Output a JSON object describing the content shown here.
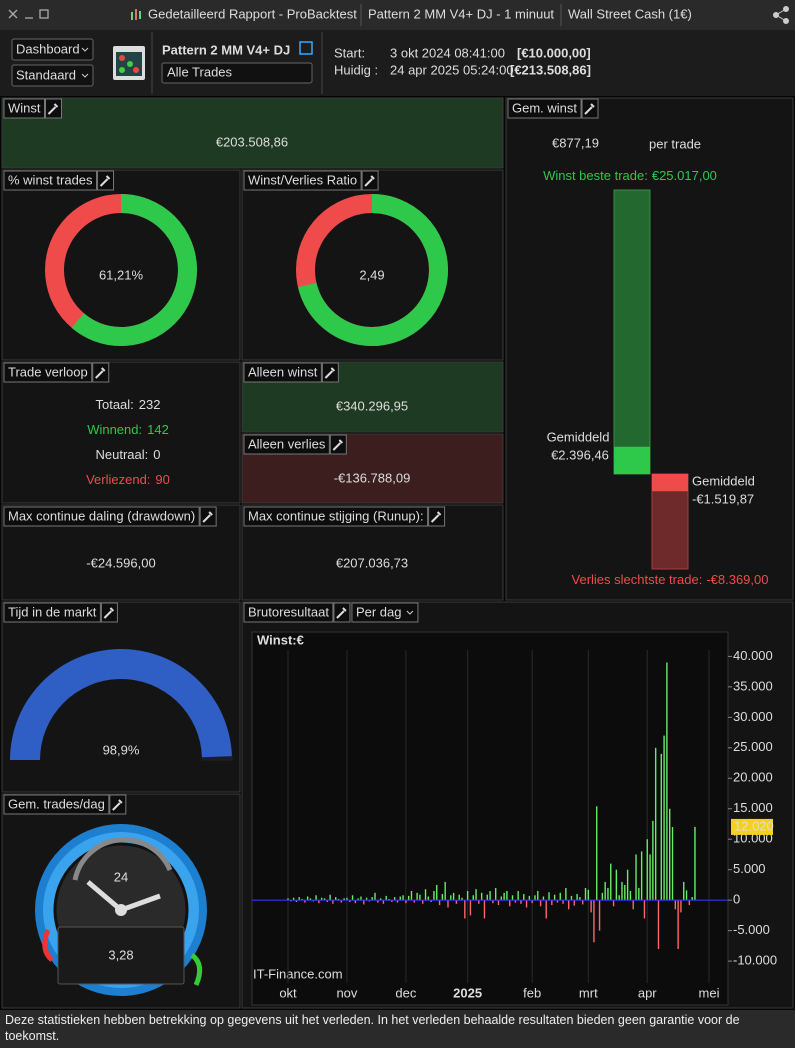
{
  "titlebar": {
    "tabs": [
      "Gedetailleerd Rapport - ProBacktest",
      "Pattern 2 MM V4+ DJ - 1 minuut",
      "Wall Street Cash (1€)"
    ]
  },
  "toolbar": {
    "view": "Dashboard",
    "layout": "Standaard",
    "system": "Pattern 2 MM V4+ DJ",
    "filter": "Alle Trades",
    "start_label": "Start:",
    "start_date": "3 okt 2024 08:41:00",
    "start_capital": "[€10.000,00]",
    "current_label": "Huidig :",
    "current_date": "24 apr 2025 05:24:00",
    "current_capital": "[€213.508,86]"
  },
  "winst": {
    "title": "Winst",
    "value": "€203.508,86"
  },
  "win_pct": {
    "title": "% winst trades",
    "value": 61.21,
    "value_label": "61,21%"
  },
  "ratio": {
    "title": "Winst/Verlies Ratio",
    "value": 2.49,
    "value_label": "2,49"
  },
  "trade_verloop": {
    "title": "Trade verloop",
    "rows": [
      {
        "label": "Totaal:",
        "value": 232
      },
      {
        "label": "Winnend:",
        "value": 142
      },
      {
        "label": "Neutraal:",
        "value": 0
      },
      {
        "label": "Verliezend:",
        "value": 90
      }
    ]
  },
  "alleen_winst": {
    "title": "Alleen winst",
    "value": "€340.296,95"
  },
  "alleen_verlies": {
    "title": "Alleen verlies",
    "value": "-€136.788,09"
  },
  "drawdown": {
    "title": "Max continue daling (drawdown)",
    "value": "-€24.596,00"
  },
  "runup": {
    "title": "Max continue stijging (Runup):",
    "value": "€207.036,73"
  },
  "gem_winst": {
    "title": "Gem. winst",
    "value": "€877,19",
    "unit": "per trade",
    "best": {
      "label": "Winst beste trade:",
      "value": 25017,
      "value_label": "€25.017,00"
    },
    "avg_win": {
      "label": "Gemiddeld",
      "value": 2396.46,
      "value_label": "€2.396,46"
    },
    "avg_loss": {
      "label": "Gemiddeld",
      "value": -1519.87,
      "value_label": "-€1.519,87"
    },
    "worst": {
      "label": "Verlies slechtste trade:",
      "value": -8369,
      "value_label": "-€8.369,00"
    }
  },
  "time_in_market": {
    "title": "Tijd in de markt",
    "value": 98.9,
    "value_label": "98,9%"
  },
  "trades_per_day": {
    "title": "Gem. trades/dag",
    "clock_label": "24",
    "value": "3,28"
  },
  "chart_data": {
    "type": "bar",
    "title": "Brutoresultaat",
    "period": "Per dag",
    "legend": "Winst:€",
    "watermark": "IT-Finance.com",
    "categories": [
      "okt",
      null,
      null,
      null,
      null,
      null,
      null,
      null,
      null,
      null,
      null,
      null,
      null,
      null,
      null,
      null,
      null,
      null,
      null,
      null,
      null,
      "nov",
      null,
      null,
      null,
      null,
      null,
      null,
      null,
      null,
      null,
      null,
      null,
      null,
      null,
      null,
      null,
      null,
      null,
      null,
      null,
      null,
      "dec",
      null,
      null,
      null,
      null,
      null,
      null,
      null,
      null,
      null,
      null,
      null,
      null,
      null,
      null,
      null,
      null,
      null,
      null,
      null,
      null,
      null,
      "2025",
      null,
      null,
      null,
      null,
      null,
      null,
      null,
      null,
      null,
      null,
      null,
      null,
      null,
      null,
      null,
      null,
      null,
      null,
      null,
      null,
      null,
      null,
      "feb",
      null,
      null,
      null,
      null,
      null,
      null,
      null,
      null,
      null,
      null,
      null,
      null,
      null,
      null,
      null,
      null,
      null,
      null,
      null,
      "mrt",
      null,
      null,
      null,
      null,
      null,
      null,
      null,
      null,
      null,
      null,
      null,
      null,
      null,
      null,
      null,
      null,
      null,
      null,
      null,
      null,
      "apr",
      null,
      null,
      null,
      null,
      null,
      null,
      null,
      null,
      null,
      null,
      null,
      null,
      null,
      null,
      null,
      null,
      null,
      null,
      null,
      null,
      null,
      "mei"
    ],
    "values": [
      300,
      -200,
      400,
      -300,
      500,
      200,
      -400,
      600,
      300,
      -200,
      800,
      -500,
      400,
      300,
      -300,
      900,
      -600,
      500,
      200,
      -400,
      300,
      400,
      -300,
      800,
      -500,
      300,
      600,
      -700,
      400,
      -200,
      500,
      1200,
      -400,
      300,
      -600,
      700,
      200,
      -300,
      500,
      -400,
      600,
      800,
      -500,
      700,
      1500,
      -400,
      1200,
      900,
      -600,
      1800,
      600,
      -300,
      1500,
      2500,
      -800,
      1000,
      3000,
      -1200,
      800,
      1200,
      -600,
      900,
      400,
      -3000,
      1500,
      -2500,
      800,
      1800,
      -600,
      1200,
      -3000,
      900,
      1500,
      -500,
      2000,
      -800,
      600,
      1200,
      1500,
      -1000,
      800,
      -400,
      1500,
      -600,
      1000,
      -1200,
      700,
      -500,
      800,
      1500,
      -1000,
      600,
      -3000,
      1300,
      -800,
      900,
      -400,
      1200,
      -600,
      2000,
      -1500,
      700,
      -900,
      1000,
      500,
      -700,
      2000,
      1700,
      -2000,
      -6900,
      15400,
      -5000,
      1200,
      3000,
      2000,
      6000,
      -1000,
      5000,
      800,
      3000,
      2500,
      5000,
      1500,
      -1500,
      7500,
      2000,
      8000,
      -3000,
      10000,
      7500,
      13000,
      25000,
      -8000,
      24000,
      27000,
      39000,
      15000,
      12000,
      -1500,
      -8000,
      -2000,
      3000,
      1600,
      -800,
      500,
      12020,
      null,
      null,
      null,
      null,
      null
    ],
    "colors": {
      "positive": "#66ee66",
      "negative": "#ff6666"
    },
    "ylim": [
      -17200,
      44000
    ],
    "yticks": [
      {
        "value": -10000,
        "label": "-10.000"
      },
      {
        "value": -5000,
        "label": "-5.000"
      },
      0,
      {
        "value": 5000,
        "label": "5.000"
      },
      {
        "value": 10000,
        "label": "10.000"
      },
      {
        "value": 15000,
        "label": "15.000"
      },
      {
        "value": 20000,
        "label": "20.000"
      },
      {
        "value": 25000,
        "label": "25.000"
      },
      {
        "value": 30000,
        "label": "30.000"
      },
      {
        "value": 35000,
        "label": "35.000"
      },
      {
        "value": 40000,
        "label": "40.000"
      }
    ],
    "marker": {
      "value": 12020,
      "label": "12.020"
    }
  },
  "footer": "Deze statistieken hebben betrekking op gegevens uit het verleden. In het verleden behaalde resultaten bieden geen garantie voor de toekomst."
}
